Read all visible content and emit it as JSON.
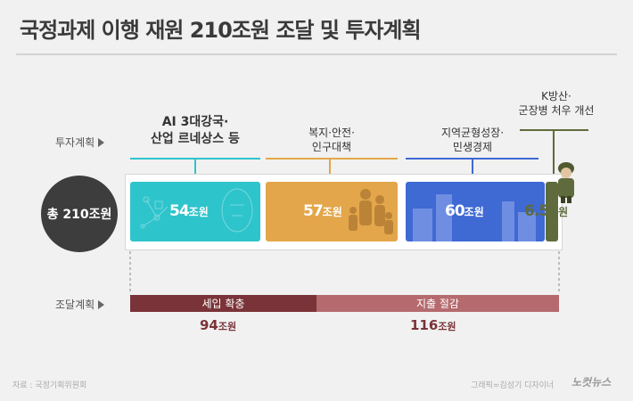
{
  "title": "국정과제 이행 재원 210조원 조달 및 투자계획",
  "invest_label": "투자계획",
  "fund_label": "조달계획",
  "total_label": "총 210조원",
  "chart_data": {
    "type": "bar",
    "total": 210,
    "unit": "조원",
    "investment": [
      {
        "label": "AI 3대강국·\n산업 르네상스 등",
        "value": 54,
        "value_text": "54",
        "color": "#2ec4cc"
      },
      {
        "label": "복지·안전·\n인구대책",
        "value": 57,
        "value_text": "57",
        "color": "#e3a64a"
      },
      {
        "label": "지역균형성장·\n민생경제",
        "value": 60,
        "value_text": "60",
        "color": "#3f69d3"
      },
      {
        "label": "K방산·\n군장병 처우 개선",
        "value": 6.5,
        "value_text": "6.5",
        "color": "#5f6b3c"
      }
    ],
    "funding": [
      {
        "label": "세입 확충",
        "value": 94,
        "value_text": "94",
        "color": "#7a3338"
      },
      {
        "label": "지출 절감",
        "value": 116,
        "value_text": "116",
        "color": "#b56a6e"
      }
    ]
  },
  "source": "자료 : 국정기획위원회",
  "credit": "그래픽=김성기 디자이너",
  "logo": "노컷뉴스",
  "colors": {
    "background": "#f1f1f1",
    "title": "#3a3a3a",
    "total_circle": "#3d3d3d"
  }
}
